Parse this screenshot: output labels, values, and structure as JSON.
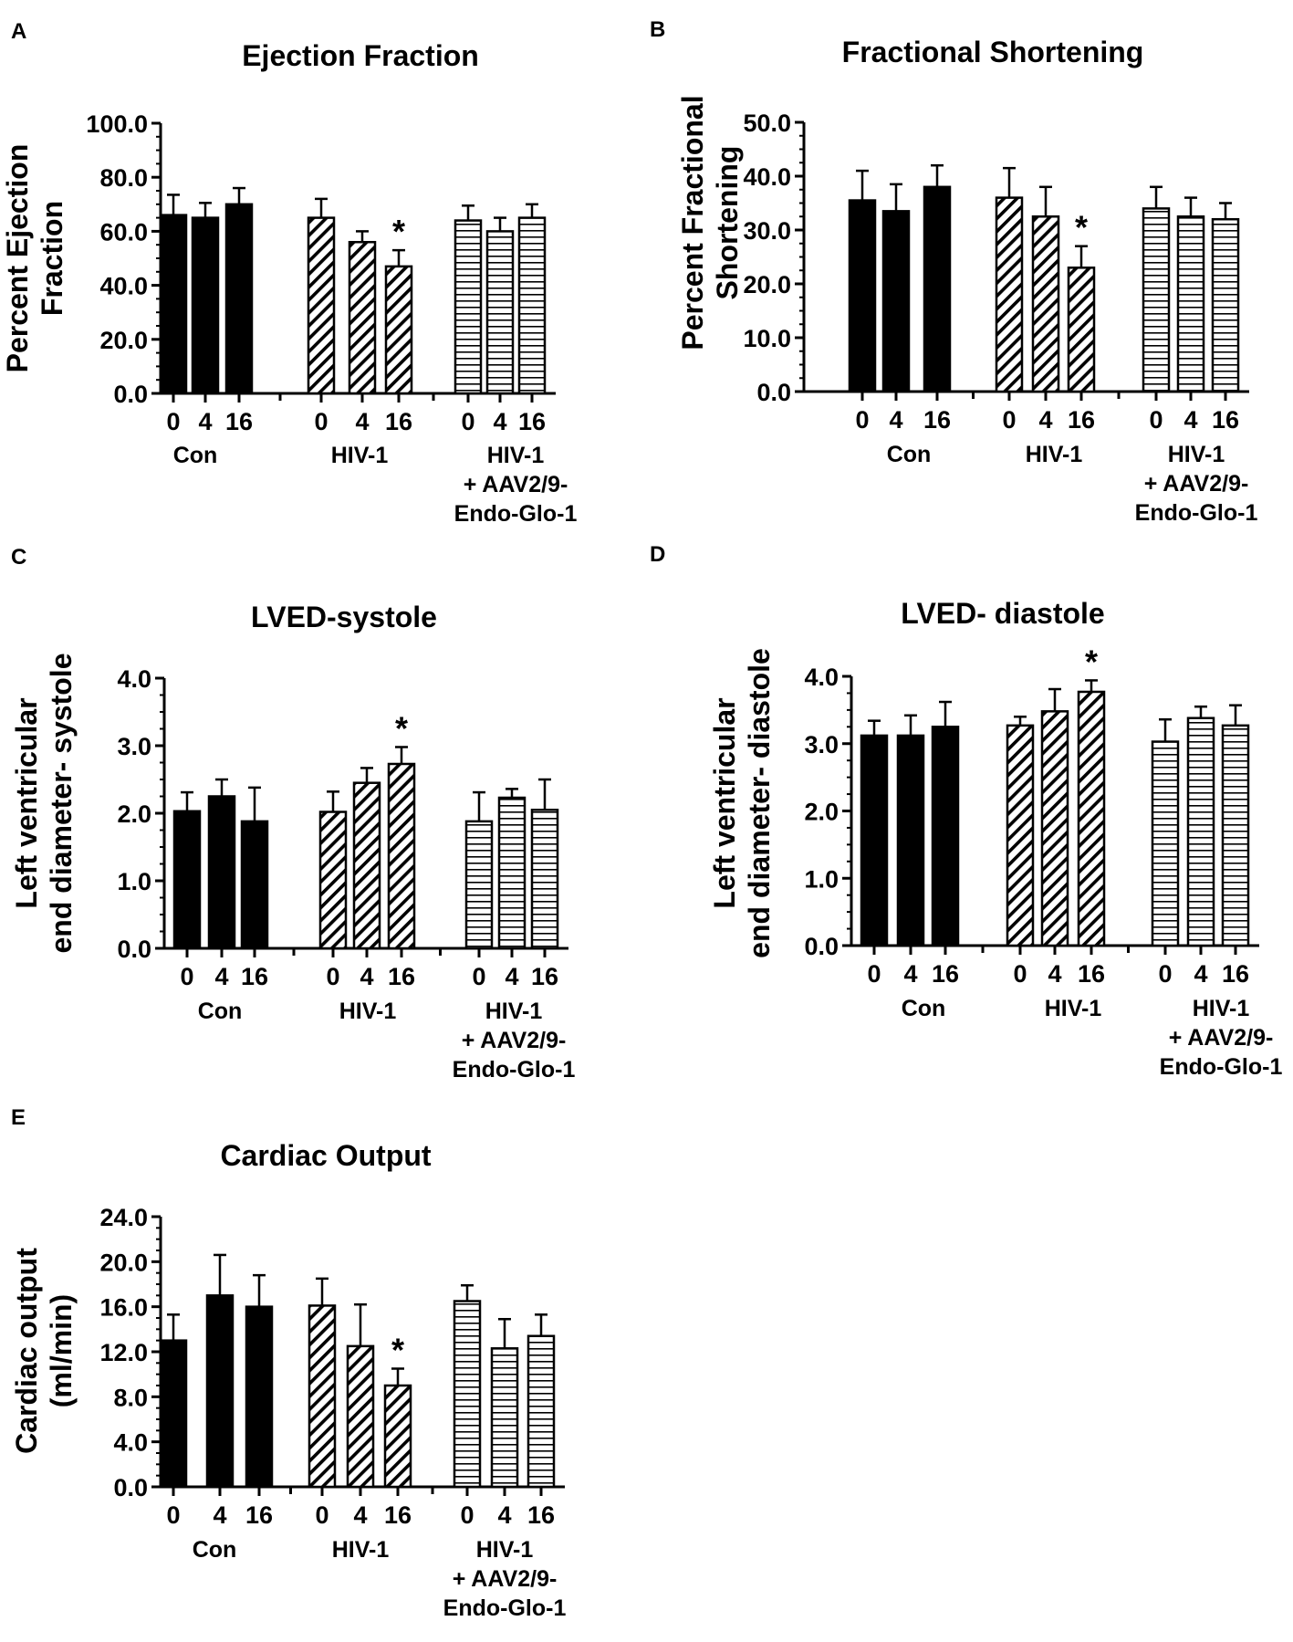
{
  "chart_data": [
    {
      "panel": "A",
      "type": "bar",
      "title": "Ejection Fraction",
      "ylabel": [
        "Percent Ejection",
        "Fraction"
      ],
      "ylim": [
        0,
        100
      ],
      "yticks": [
        "0.0",
        "20.0",
        "40.0",
        "60.0",
        "80.0",
        "100.0"
      ],
      "groups": [
        {
          "name": [
            "Con"
          ],
          "pattern": "solid",
          "categories": [
            "0",
            "4",
            "16"
          ],
          "values": [
            66,
            65,
            70
          ],
          "errors": [
            7.5,
            5.5,
            6
          ]
        },
        {
          "name": [
            "HIV-1"
          ],
          "pattern": "diagonal",
          "categories": [
            "0",
            "4",
            "16"
          ],
          "values": [
            65,
            56,
            47
          ],
          "errors": [
            7,
            4,
            6
          ]
        },
        {
          "name": [
            "HIV-1",
            "+ AAV2/9-",
            "Endo-Glo-1"
          ],
          "pattern": "horizontal",
          "categories": [
            "0",
            "4",
            "16"
          ],
          "values": [
            64,
            60,
            65
          ],
          "errors": [
            5.5,
            5,
            5
          ]
        }
      ],
      "significance": [
        {
          "group": 1,
          "bar": 2,
          "label": "*"
        }
      ]
    },
    {
      "panel": "B",
      "type": "bar",
      "title": "Fractional Shortening",
      "ylabel": [
        "Percent Fractional",
        "Shortening"
      ],
      "ylim": [
        0,
        50
      ],
      "yticks": [
        "0.0",
        "10.0",
        "20.0",
        "30.0",
        "40.0",
        "50.0"
      ],
      "groups": [
        {
          "name": [
            "Con"
          ],
          "pattern": "solid",
          "categories": [
            "0",
            "4",
            "16"
          ],
          "values": [
            35.5,
            33.5,
            38
          ],
          "errors": [
            5.5,
            5,
            4
          ]
        },
        {
          "name": [
            "HIV-1"
          ],
          "pattern": "diagonal",
          "categories": [
            "0",
            "4",
            "16"
          ],
          "values": [
            36,
            32.5,
            23
          ],
          "errors": [
            5.5,
            5.5,
            4
          ]
        },
        {
          "name": [
            "HIV-1",
            "+ AAV2/9-",
            "Endo-Glo-1"
          ],
          "pattern": "horizontal",
          "categories": [
            "0",
            "4",
            "16"
          ],
          "values": [
            34,
            32.5,
            32
          ],
          "errors": [
            4,
            3.5,
            3
          ]
        }
      ],
      "significance": [
        {
          "group": 1,
          "bar": 2,
          "label": "*"
        }
      ]
    },
    {
      "panel": "C",
      "type": "bar",
      "title": "LVED-systole",
      "ylabel": [
        "Left ventricular",
        "end diameter- systole"
      ],
      "ylim": [
        0,
        4
      ],
      "yticks": [
        "0.0",
        "1.0",
        "2.0",
        "3.0",
        "4.0"
      ],
      "groups": [
        {
          "name": [
            "Con"
          ],
          "pattern": "solid",
          "categories": [
            "0",
            "4",
            "16"
          ],
          "values": [
            2.03,
            2.25,
            1.88
          ],
          "errors": [
            0.28,
            0.25,
            0.5
          ]
        },
        {
          "name": [
            "HIV-1"
          ],
          "pattern": "diagonal",
          "categories": [
            "0",
            "4",
            "16"
          ],
          "values": [
            2.02,
            2.45,
            2.73
          ],
          "errors": [
            0.3,
            0.22,
            0.25
          ]
        },
        {
          "name": [
            "HIV-1",
            "+ AAV2/9-",
            "Endo-Glo-1"
          ],
          "pattern": "horizontal",
          "categories": [
            "0",
            "4",
            "16"
          ],
          "values": [
            1.88,
            2.23,
            2.05
          ],
          "errors": [
            0.43,
            0.13,
            0.45
          ]
        }
      ],
      "significance": [
        {
          "group": 1,
          "bar": 2,
          "label": "*"
        }
      ]
    },
    {
      "panel": "D",
      "type": "bar",
      "title": "LVED- diastole",
      "ylabel": [
        "Left ventricular",
        "end diameter- diastole"
      ],
      "ylim": [
        0,
        4
      ],
      "yticks": [
        "0.0",
        "1.0",
        "2.0",
        "3.0",
        "4.0"
      ],
      "groups": [
        {
          "name": [
            "Con"
          ],
          "pattern": "solid",
          "categories": [
            "0",
            "4",
            "16"
          ],
          "values": [
            3.12,
            3.12,
            3.25
          ],
          "errors": [
            0.22,
            0.3,
            0.37
          ]
        },
        {
          "name": [
            "HIV-1"
          ],
          "pattern": "diagonal",
          "categories": [
            "0",
            "4",
            "16"
          ],
          "values": [
            3.27,
            3.48,
            3.77
          ],
          "errors": [
            0.13,
            0.33,
            0.17
          ]
        },
        {
          "name": [
            "HIV-1",
            "+ AAV2/9-",
            "Endo-Glo-1"
          ],
          "pattern": "horizontal",
          "categories": [
            "0",
            "4",
            "16"
          ],
          "values": [
            3.03,
            3.38,
            3.27
          ],
          "errors": [
            0.33,
            0.17,
            0.3
          ]
        }
      ],
      "significance": [
        {
          "group": 1,
          "bar": 2,
          "label": "*"
        }
      ]
    },
    {
      "panel": "E",
      "type": "bar",
      "title": "Cardiac Output",
      "ylabel": [
        "Cardiac output",
        "(ml/min)"
      ],
      "ylim": [
        0,
        24
      ],
      "yticks": [
        "0.0",
        "4.0",
        "8.0",
        "12.0",
        "16.0",
        "20.0",
        "24.0"
      ],
      "groups": [
        {
          "name": [
            "Con"
          ],
          "pattern": "solid",
          "categories": [
            "0",
            "4",
            "16"
          ],
          "values": [
            13,
            17,
            16
          ],
          "errors": [
            2.3,
            3.6,
            2.8
          ]
        },
        {
          "name": [
            "HIV-1"
          ],
          "pattern": "diagonal",
          "categories": [
            "0",
            "4",
            "16"
          ],
          "values": [
            16.1,
            12.5,
            9
          ],
          "errors": [
            2.4,
            3.7,
            1.5
          ]
        },
        {
          "name": [
            "HIV-1",
            "+ AAV2/9-",
            "Endo-Glo-1"
          ],
          "pattern": "horizontal",
          "categories": [
            "0",
            "4",
            "16"
          ],
          "values": [
            16.5,
            12.3,
            13.4
          ],
          "errors": [
            1.4,
            2.6,
            1.9
          ]
        }
      ],
      "significance": [
        {
          "group": 1,
          "bar": 2,
          "label": "*"
        }
      ]
    }
  ]
}
